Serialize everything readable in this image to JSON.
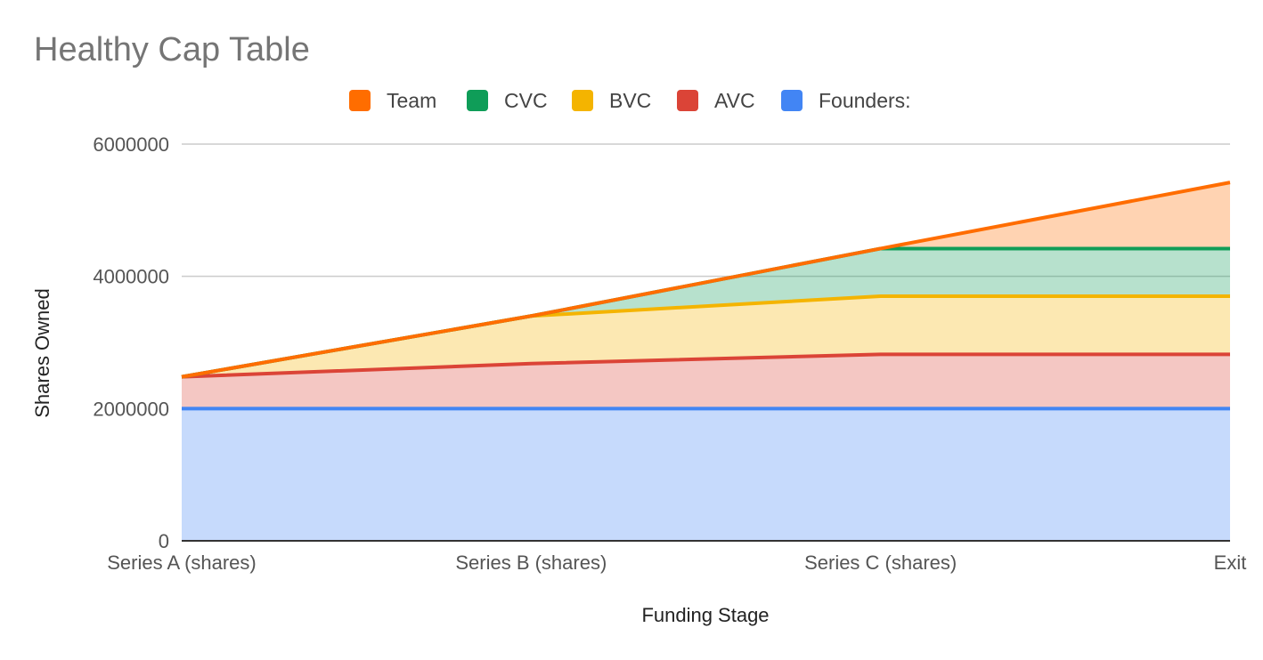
{
  "chart_data": {
    "type": "area",
    "stacked": true,
    "title": "Healthy Cap Table",
    "xlabel": "Funding Stage",
    "ylabel": "Shares Owned",
    "categories": [
      "Series A (shares)",
      "Series B (shares)",
      "Series C (shares)",
      "Exit"
    ],
    "ylim": [
      0,
      6000000
    ],
    "yticks": [
      "0",
      "2000000",
      "4000000",
      "6000000"
    ],
    "grid": true,
    "legend_position": "top",
    "series": [
      {
        "name": "Founders:",
        "color": "#4285f4",
        "values": [
          2000000,
          2000000,
          2000000,
          2000000
        ]
      },
      {
        "name": "AVC",
        "color": "#db4437",
        "values": [
          480000,
          680000,
          820000,
          820000
        ]
      },
      {
        "name": "BVC",
        "color": "#f4b400",
        "values": [
          0,
          720000,
          880000,
          880000
        ]
      },
      {
        "name": "CVC",
        "color": "#0f9d58",
        "values": [
          0,
          0,
          720000,
          720000
        ]
      },
      {
        "name": "Team",
        "color": "#ff6d00",
        "values": [
          0,
          0,
          0,
          1000000
        ]
      }
    ],
    "legend_order": [
      "Team",
      "CVC",
      "BVC",
      "AVC",
      "Founders:"
    ]
  }
}
